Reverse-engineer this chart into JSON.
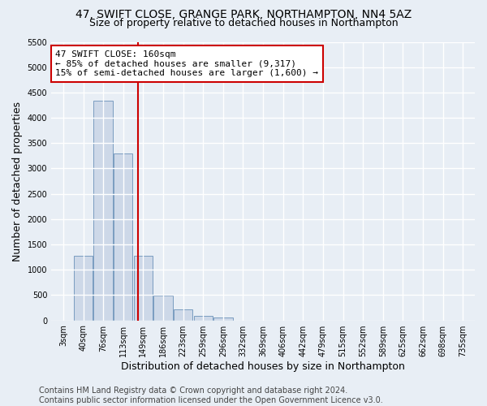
{
  "title1": "47, SWIFT CLOSE, GRANGE PARK, NORTHAMPTON, NN4 5AZ",
  "title2": "Size of property relative to detached houses in Northampton",
  "xlabel": "Distribution of detached houses by size in Northampton",
  "ylabel": "Number of detached properties",
  "categories": [
    "3sqm",
    "40sqm",
    "76sqm",
    "113sqm",
    "149sqm",
    "186sqm",
    "223sqm",
    "259sqm",
    "296sqm",
    "332sqm",
    "369sqm",
    "406sqm",
    "442sqm",
    "479sqm",
    "515sqm",
    "552sqm",
    "589sqm",
    "625sqm",
    "662sqm",
    "698sqm",
    "735sqm"
  ],
  "values": [
    0,
    1270,
    4330,
    3300,
    1280,
    490,
    220,
    90,
    55,
    0,
    0,
    0,
    0,
    0,
    0,
    0,
    0,
    0,
    0,
    0,
    0
  ],
  "bar_color": "#cdd8e8",
  "bar_edge_color": "#7a9cc0",
  "background_color": "#e8eef5",
  "grid_color": "#ffffff",
  "annotation_line1": "47 SWIFT CLOSE: 160sqm",
  "annotation_line2": "← 85% of detached houses are smaller (9,317)",
  "annotation_line3": "15% of semi-detached houses are larger (1,600) →",
  "annotation_box_color": "#ffffff",
  "annotation_box_edge": "#cc0000",
  "vline_x": 3.72,
  "vline_color": "#cc0000",
  "ylim": [
    0,
    5500
  ],
  "yticks": [
    0,
    500,
    1000,
    1500,
    2000,
    2500,
    3000,
    3500,
    4000,
    4500,
    5000,
    5500
  ],
  "footer": "Contains HM Land Registry data © Crown copyright and database right 2024.\nContains public sector information licensed under the Open Government Licence v3.0.",
  "title_fontsize": 10,
  "subtitle_fontsize": 9,
  "annotation_fontsize": 8,
  "axis_label_fontsize": 9,
  "tick_fontsize": 7,
  "footer_fontsize": 7
}
